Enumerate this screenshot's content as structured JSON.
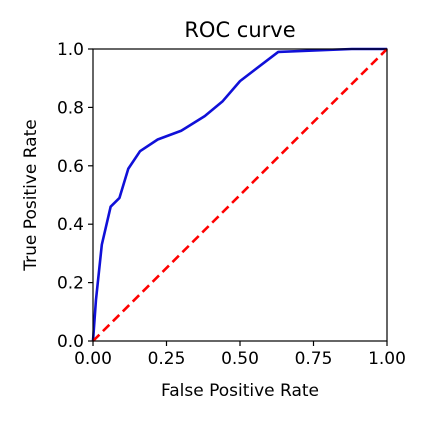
{
  "chart_data": {
    "type": "line",
    "title": "ROC curve",
    "xlabel": "False Positive Rate",
    "ylabel": "True Positive Rate",
    "xlim": [
      0,
      1
    ],
    "ylim": [
      0,
      1
    ],
    "xticks": [
      0,
      0.25,
      0.5,
      0.75,
      1.0
    ],
    "xtick_labels": [
      "0.00",
      "0.25",
      "0.50",
      "0.75",
      "1.00"
    ],
    "yticks": [
      0,
      0.2,
      0.4,
      0.6,
      0.8,
      1.0
    ],
    "ytick_labels": [
      "0.0",
      "0.2",
      "0.4",
      "0.6",
      "0.8",
      "1.0"
    ],
    "grid": false,
    "legend": false,
    "series": [
      {
        "color": "#1010d8",
        "style": "solid",
        "x": [
          0.0,
          0.01,
          0.03,
          0.06,
          0.09,
          0.12,
          0.16,
          0.22,
          0.3,
          0.38,
          0.44,
          0.5,
          0.63,
          0.88,
          1.0
        ],
        "y": [
          0.0,
          0.14,
          0.33,
          0.46,
          0.49,
          0.59,
          0.65,
          0.69,
          0.72,
          0.77,
          0.82,
          0.89,
          0.99,
          1.0,
          1.0
        ]
      },
      {
        "color": "#ff0000",
        "style": "dashed",
        "x": [
          0,
          1
        ],
        "y": [
          0,
          1
        ]
      }
    ]
  }
}
